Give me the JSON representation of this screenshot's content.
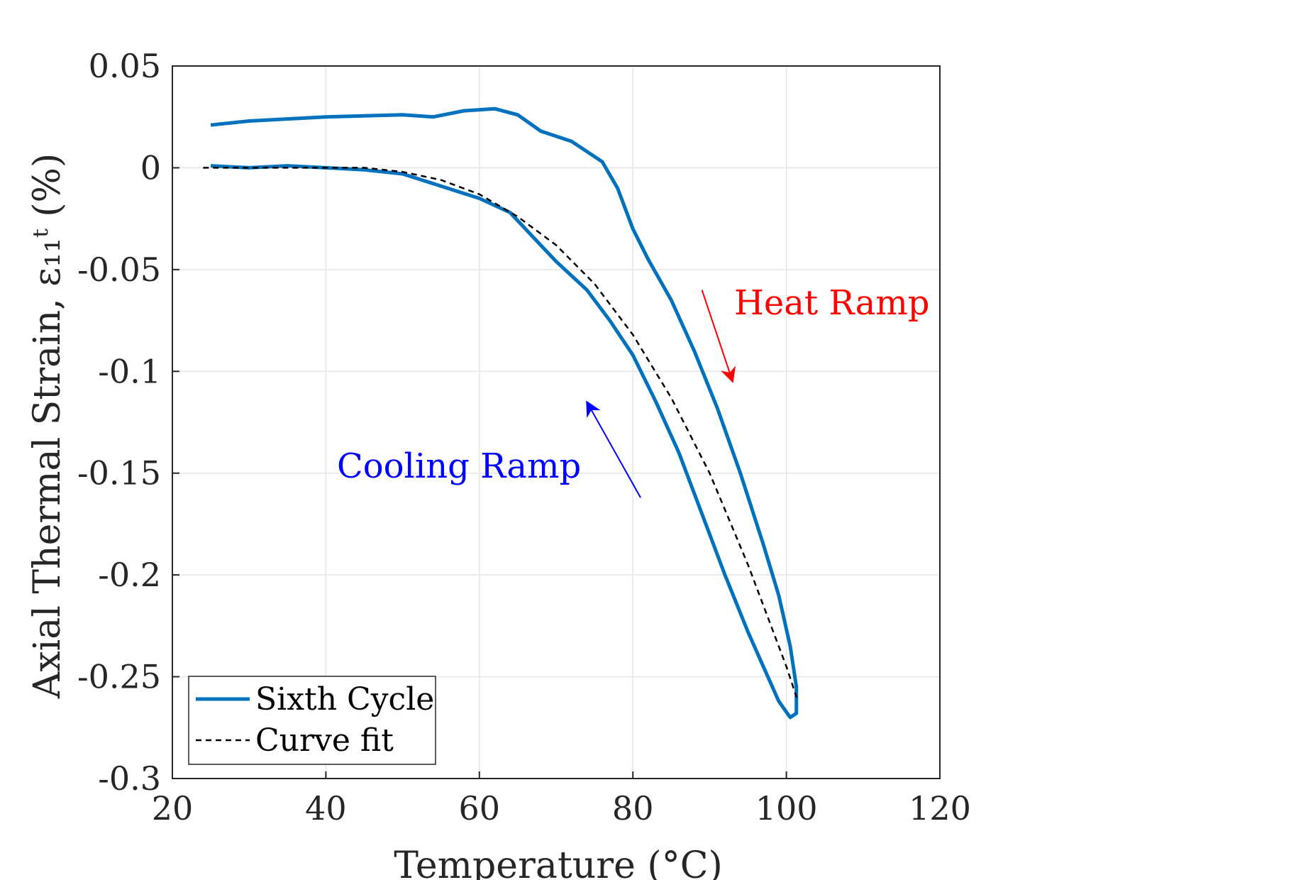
{
  "chart_data": {
    "type": "line",
    "xlabel": "Temperature (°C)",
    "ylabel": "Axial Thermal Strain, ε₁₁ᵗ (%)",
    "xlim": [
      20,
      120
    ],
    "ylim": [
      -0.3,
      0.05
    ],
    "x_ticks": [
      "20",
      "40",
      "60",
      "80",
      "100",
      "120"
    ],
    "y_ticks": [
      "0.05",
      "0",
      "-0.05",
      "-0.1",
      "-0.15",
      "-0.2",
      "-0.25",
      "-0.3"
    ],
    "grid": true,
    "legend_position": "bottom-left",
    "series": [
      {
        "name": "Sixth Cycle",
        "color": "#0072BD",
        "style": "solid",
        "x": [
          25,
          30,
          40,
          50,
          54,
          58,
          62,
          65,
          68,
          72,
          76,
          78,
          80,
          82,
          85,
          88,
          91,
          94,
          97,
          99,
          100.5,
          101.3,
          101.3,
          100.5,
          99,
          97,
          95,
          92,
          89,
          86,
          83,
          80,
          77,
          74,
          70,
          67,
          64,
          60,
          55,
          50,
          45,
          40,
          35,
          30,
          25
        ],
        "y": [
          0.021,
          0.023,
          0.025,
          0.026,
          0.025,
          0.028,
          0.029,
          0.026,
          0.018,
          0.013,
          0.003,
          -0.01,
          -0.03,
          -0.045,
          -0.065,
          -0.09,
          -0.118,
          -0.15,
          -0.185,
          -0.21,
          -0.235,
          -0.255,
          -0.268,
          -0.27,
          -0.262,
          -0.245,
          -0.228,
          -0.2,
          -0.17,
          -0.14,
          -0.115,
          -0.092,
          -0.075,
          -0.06,
          -0.046,
          -0.034,
          -0.022,
          -0.015,
          -0.009,
          -0.003,
          -0.001,
          0.0,
          0.001,
          0.0,
          0.001
        ]
      },
      {
        "name": "Curve fit",
        "color": "#000000",
        "style": "dashed",
        "x": [
          24,
          30,
          40,
          45,
          50,
          55,
          60,
          65,
          70,
          75,
          80,
          85,
          90,
          95,
          100,
          101.5
        ],
        "y": [
          0.0,
          0.0,
          0.0,
          0.0,
          -0.002,
          -0.006,
          -0.013,
          -0.024,
          -0.038,
          -0.057,
          -0.082,
          -0.113,
          -0.15,
          -0.195,
          -0.245,
          -0.262
        ]
      }
    ],
    "annotations": [
      {
        "text": "Heat Ramp",
        "color": "#FF0000",
        "arrow_from": [
          89,
          -0.06
        ],
        "arrow_to": [
          93,
          -0.105
        ]
      },
      {
        "text": "Cooling Ramp",
        "color": "#0000FF",
        "arrow_from": [
          81,
          -0.162
        ],
        "arrow_to": [
          74,
          -0.115
        ]
      }
    ]
  }
}
